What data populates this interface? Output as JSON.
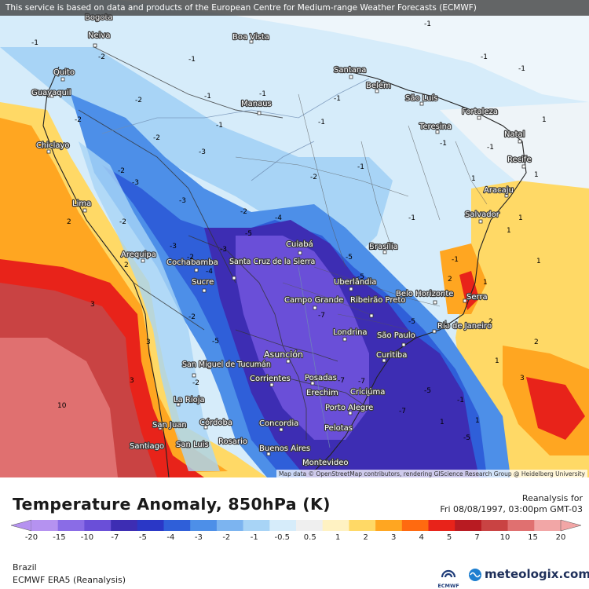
{
  "banner": "This service is based on data and products of the European Centre for Medium-range Weather Forecasts (ECMWF)",
  "attribution": "Map data © OpenStreetMap contributors, rendering GIScience Research Group @ Heidelberg University",
  "title": "Temperature Anomaly, 850hPa (K)",
  "run_type": "Reanalysis for",
  "valid_time": "Fri 08/08/1997, 03:00pm GMT-03",
  "region": "Brazil",
  "model": "ECMWF ERA5 (Reanalysis)",
  "ecmwf_logo_text": "ECMWF",
  "brand": "meteologix.com",
  "legend": {
    "ticks": [
      "-20",
      "-15",
      "-10",
      "-7",
      "-5",
      "-4",
      "-3",
      "-2",
      "-1",
      "-0.5",
      "0.5",
      "1",
      "2",
      "3",
      "4",
      "5",
      "7",
      "10",
      "15",
      "20"
    ],
    "colors": [
      "#b592f0",
      "#8a6ce6",
      "#6a4fd8",
      "#3d2db3",
      "#2a37c6",
      "#2f5fd9",
      "#4d8fe8",
      "#7cb4f0",
      "#a8d4f6",
      "#d6ecfa",
      "#efefef",
      "#fff2c2",
      "#ffd966",
      "#ffa621",
      "#ff6a10",
      "#e8231a",
      "#b81b22",
      "#c94343",
      "#e07070",
      "#f2a6a6"
    ]
  },
  "cities": [
    {
      "name": "Bogota"
    },
    {
      "name": "Boa Vista"
    },
    {
      "name": "Neiva"
    },
    {
      "name": "Quito"
    },
    {
      "name": "Guayaquil"
    },
    {
      "name": "Santana"
    },
    {
      "name": "Belém"
    },
    {
      "name": "São Luís"
    },
    {
      "name": "Manaus"
    },
    {
      "name": "Fortaleza"
    },
    {
      "name": "Teresina"
    },
    {
      "name": "Natal"
    },
    {
      "name": "Chiclayo"
    },
    {
      "name": "Recife"
    },
    {
      "name": "Aracaju"
    },
    {
      "name": "Lima"
    },
    {
      "name": "Salvador"
    },
    {
      "name": "Cuiabá"
    },
    {
      "name": "Brasília"
    },
    {
      "name": "Arequipa"
    },
    {
      "name": "Cochabamba"
    },
    {
      "name": "Santa Cruz de la Sierra"
    },
    {
      "name": "Sucre"
    },
    {
      "name": "Uberlândia"
    },
    {
      "name": "Belo Horizonte"
    },
    {
      "name": "Serra"
    },
    {
      "name": "Campo Grande"
    },
    {
      "name": "Ribeirão Preto"
    },
    {
      "name": "Rio de Janeiro"
    },
    {
      "name": "Londrina"
    },
    {
      "name": "São Paulo"
    },
    {
      "name": "Curitiba"
    },
    {
      "name": "Asunción"
    },
    {
      "name": "San Miguel de Tucumán"
    },
    {
      "name": "Corrientes"
    },
    {
      "name": "Posadas"
    },
    {
      "name": "Erechim"
    },
    {
      "name": "Criciúma"
    },
    {
      "name": "La Rioja"
    },
    {
      "name": "Porto Alegre"
    },
    {
      "name": "San Juan"
    },
    {
      "name": "Córdoba"
    },
    {
      "name": "Concordia"
    },
    {
      "name": "Pelotas"
    },
    {
      "name": "Santiago"
    },
    {
      "name": "San Luis"
    },
    {
      "name": "Rosario"
    },
    {
      "name": "Buenos Aires"
    },
    {
      "name": "Montevideo"
    }
  ],
  "contour_labels": [
    "-1",
    "-1",
    "-1",
    "-1",
    "-1",
    "-1",
    "-2",
    "-1",
    "-2",
    "-1",
    "-1",
    "-1",
    "1",
    "-1",
    "-1",
    "1",
    "-2",
    "-2",
    "-3",
    "-1",
    "1",
    "-2",
    "-3",
    "-2",
    "-3",
    "-2",
    "-1",
    "1",
    "2",
    "-2",
    "-5",
    "-4",
    "-3",
    "-1",
    "2",
    "1",
    "-2",
    "-3",
    "-5",
    "-5",
    "-1",
    "1",
    "1",
    "2",
    "3",
    "-4",
    "-7",
    "-5",
    "-2",
    "1",
    "2",
    "2",
    "3",
    "1",
    "-5",
    "-7",
    "-2",
    "10",
    "3",
    "3",
    "-7",
    "-5",
    "1",
    "1",
    "-1",
    "-5",
    "-7"
  ]
}
